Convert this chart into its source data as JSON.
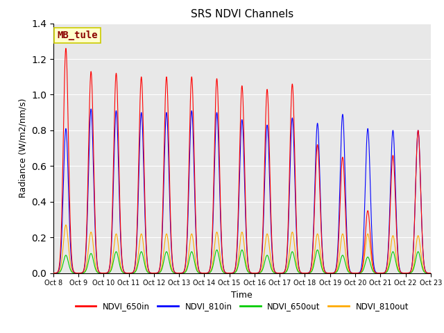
{
  "title": "SRS NDVI Channels",
  "xlabel": "Time",
  "ylabel": "Radiance (W/m2/nm/s)",
  "annotation": "MB_tule",
  "ylim": [
    0,
    1.4
  ],
  "xlim_start": 0,
  "xlim_end": 15,
  "xtick_labels": [
    "Oct 8",
    "Oct 9",
    "Oct 10",
    "Oct 11",
    "Oct 12",
    "Oct 13",
    "Oct 14",
    "Oct 15",
    "Oct 16",
    "Oct 17",
    "Oct 18",
    "Oct 19",
    "Oct 20",
    "Oct 21",
    "Oct 22",
    "Oct 23"
  ],
  "legend_labels": [
    "NDVI_650in",
    "NDVI_810in",
    "NDVI_650out",
    "NDVI_810out"
  ],
  "legend_colors": [
    "#ff0000",
    "#0000ff",
    "#00cc00",
    "#ffaa00"
  ],
  "background_color": "#e8e8e8",
  "title_fontsize": 11,
  "axis_fontsize": 9,
  "peaks_650in": [
    1.26,
    1.13,
    1.12,
    1.1,
    1.1,
    1.1,
    1.09,
    1.05,
    1.03,
    1.06,
    0.72,
    0.65,
    0.35,
    0.66,
    0.8
  ],
  "peaks_810in": [
    0.81,
    0.92,
    0.91,
    0.9,
    0.9,
    0.91,
    0.9,
    0.86,
    0.83,
    0.87,
    0.84,
    0.89,
    0.81,
    0.8,
    0.8
  ],
  "peaks_650out": [
    0.1,
    0.11,
    0.12,
    0.12,
    0.12,
    0.12,
    0.13,
    0.13,
    0.1,
    0.12,
    0.13,
    0.1,
    0.09,
    0.12,
    0.12
  ],
  "peaks_810out": [
    0.27,
    0.23,
    0.22,
    0.22,
    0.22,
    0.22,
    0.23,
    0.23,
    0.22,
    0.23,
    0.22,
    0.22,
    0.22,
    0.21,
    0.21
  ],
  "sigma": 0.1,
  "num_days": 15,
  "figsize": [
    6.4,
    4.8
  ],
  "dpi": 100
}
